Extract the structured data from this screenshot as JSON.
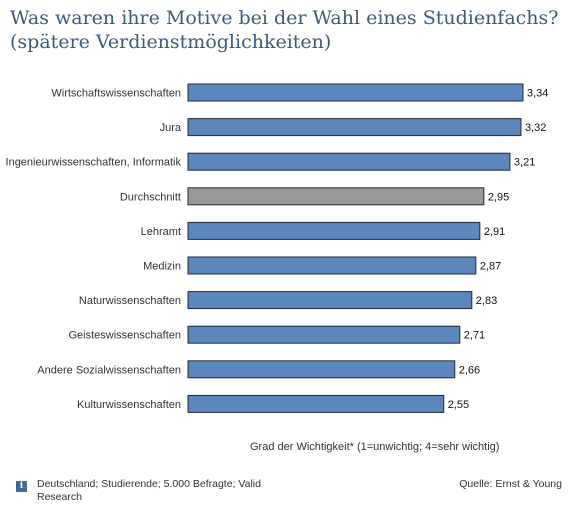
{
  "chart_data": {
    "type": "bar",
    "orientation": "horizontal",
    "title": "Was waren ihre Motive bei der Wahl eines Studienfachs? (spätere Verdienstmöglichkeiten)",
    "xlabel": "Grad der Wichtigkeit* (1=unwichtig; 4=sehr wichtig)",
    "ylabel": "",
    "xlim": [
      0,
      3.5
    ],
    "grid": false,
    "categories": [
      "Wirtschaftswissenschaften",
      "Jura",
      "Ingenieurwissenschaften, Informatik",
      "Durchschnitt",
      "Lehramt",
      "Medizin",
      "Naturwissenschaften",
      "Geisteswissenschaften",
      "Andere Sozialwissenschaften",
      "Kulturwissenschaften"
    ],
    "values": [
      3.34,
      3.32,
      3.21,
      2.95,
      2.91,
      2.87,
      2.83,
      2.71,
      2.66,
      2.55
    ],
    "value_labels": [
      "3,34",
      "3,32",
      "3,21",
      "2,95",
      "2,91",
      "2,87",
      "2,83",
      "2,71",
      "2,66",
      "2,55"
    ],
    "highlight_category": "Durchschnitt",
    "colors": {
      "bar": "#5b87bc",
      "highlight": "#999999",
      "bar_border": "#1f2a38"
    }
  },
  "footer": {
    "info_icon": "info-icon",
    "note": "Deutschland; Studierende; 5.000 Befragte; Valid Research",
    "source": "Quelle: Ernst & Young"
  }
}
